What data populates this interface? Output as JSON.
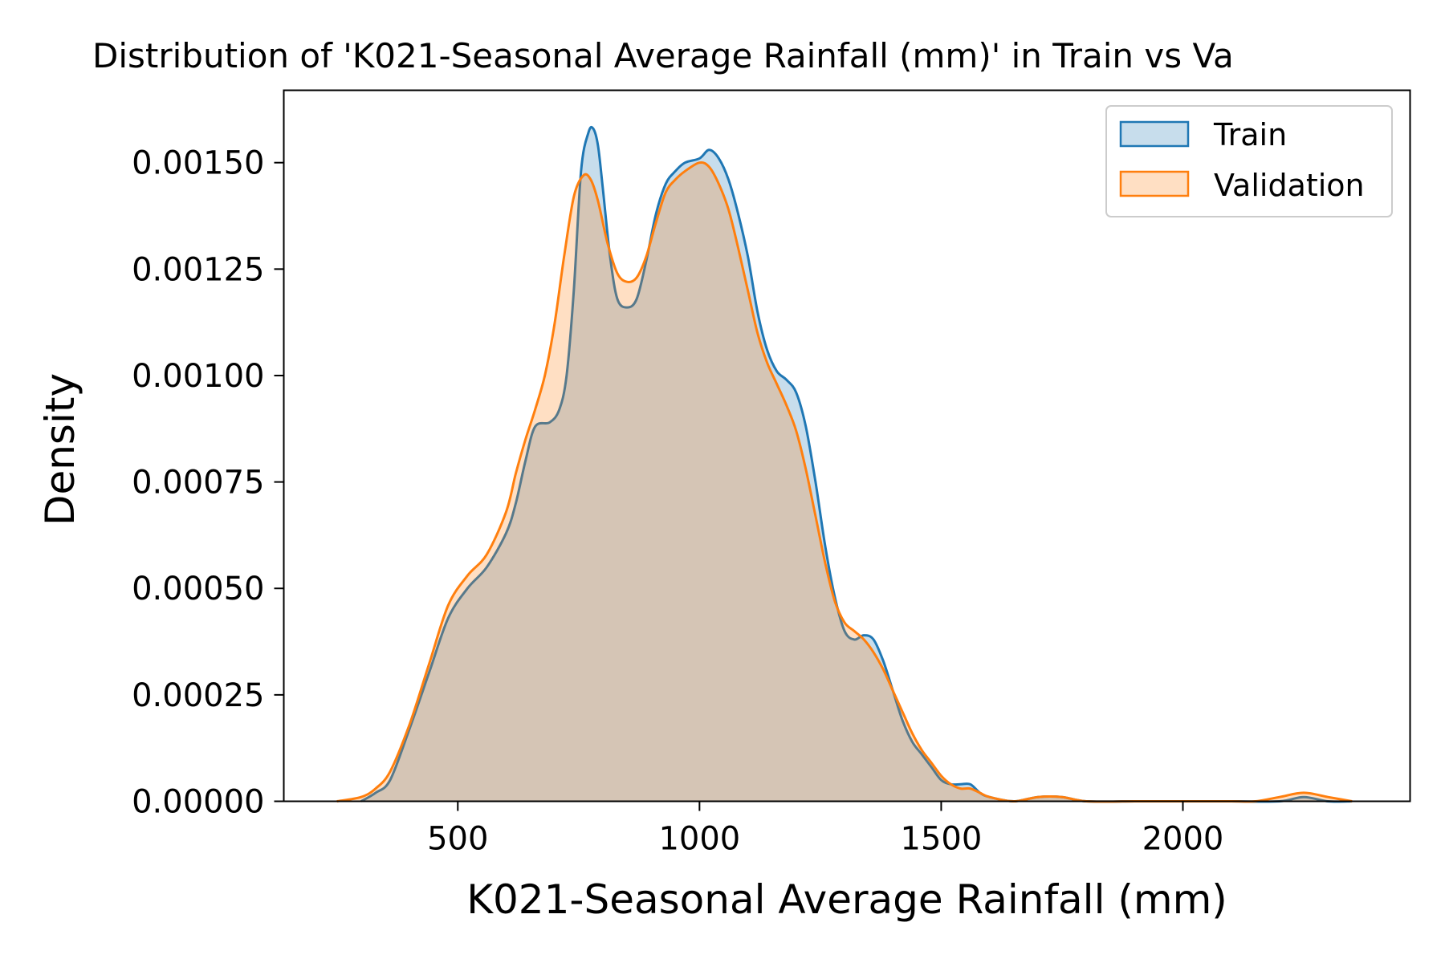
{
  "chart_data": {
    "type": "area",
    "title": "Distribution of 'K021-Seasonal Average Rainfall (mm)' in Train vs Va",
    "xlabel": "K021-Seasonal Average Rainfall (mm)",
    "ylabel": "Density",
    "xlim": [
      140,
      2470
    ],
    "ylim": [
      0,
      0.00167
    ],
    "x_ticks": [
      500,
      1000,
      1500,
      2000
    ],
    "x_tick_labels": [
      "500",
      "1000",
      "1500",
      "2000"
    ],
    "y_ticks": [
      0,
      0.00025,
      0.0005,
      0.00075,
      0.001,
      0.00125,
      0.0015
    ],
    "y_tick_labels": [
      "0.00000",
      "0.00025",
      "0.00050",
      "0.00075",
      "0.00100",
      "0.00125",
      "0.00150"
    ],
    "grid": false,
    "legend_position": "top-right",
    "series": [
      {
        "name": "Train",
        "line_color": "#1f77b4",
        "fill_color": "#1f77b4",
        "points": [
          [
            300,
            0
          ],
          [
            330,
            2e-05
          ],
          [
            360,
            5e-05
          ],
          [
            400,
            0.00017
          ],
          [
            440,
            0.0003
          ],
          [
            480,
            0.00043
          ],
          [
            520,
            0.0005
          ],
          [
            560,
            0.00055
          ],
          [
            600,
            0.00063
          ],
          [
            620,
            0.0007
          ],
          [
            640,
            0.0008
          ],
          [
            660,
            0.00088
          ],
          [
            690,
            0.00089
          ],
          [
            710,
            0.00092
          ],
          [
            725,
            0.001
          ],
          [
            740,
            0.0012
          ],
          [
            755,
            0.00148
          ],
          [
            770,
            0.00157
          ],
          [
            780,
            0.00158
          ],
          [
            790,
            0.00154
          ],
          [
            800,
            0.00144
          ],
          [
            815,
            0.00128
          ],
          [
            830,
            0.00118
          ],
          [
            850,
            0.00116
          ],
          [
            870,
            0.00118
          ],
          [
            890,
            0.00127
          ],
          [
            910,
            0.00138
          ],
          [
            930,
            0.00145
          ],
          [
            950,
            0.00148
          ],
          [
            970,
            0.0015
          ],
          [
            1000,
            0.00151
          ],
          [
            1020,
            0.00153
          ],
          [
            1040,
            0.00151
          ],
          [
            1060,
            0.00146
          ],
          [
            1080,
            0.00138
          ],
          [
            1100,
            0.00128
          ],
          [
            1120,
            0.00115
          ],
          [
            1140,
            0.00106
          ],
          [
            1160,
            0.00101
          ],
          [
            1180,
            0.00099
          ],
          [
            1200,
            0.00096
          ],
          [
            1220,
            0.00088
          ],
          [
            1240,
            0.00075
          ],
          [
            1260,
            0.0006
          ],
          [
            1280,
            0.00048
          ],
          [
            1300,
            0.0004
          ],
          [
            1320,
            0.00038
          ],
          [
            1340,
            0.00039
          ],
          [
            1360,
            0.00038
          ],
          [
            1380,
            0.00033
          ],
          [
            1400,
            0.00026
          ],
          [
            1420,
            0.00019
          ],
          [
            1440,
            0.00014
          ],
          [
            1460,
            0.00011
          ],
          [
            1480,
            8e-05
          ],
          [
            1500,
            5e-05
          ],
          [
            1520,
            4e-05
          ],
          [
            1540,
            4e-05
          ],
          [
            1560,
            4e-05
          ],
          [
            1580,
            2e-05
          ],
          [
            1600,
            1e-05
          ],
          [
            1650,
            0
          ],
          [
            1700,
            1e-05
          ],
          [
            1750,
            1e-05
          ],
          [
            1800,
            0
          ],
          [
            1900,
            0
          ],
          [
            2000,
            0
          ],
          [
            2100,
            0
          ],
          [
            2200,
            0
          ],
          [
            2250,
            1e-05
          ],
          [
            2300,
            0
          ],
          [
            2350,
            0
          ]
        ]
      },
      {
        "name": "Validation",
        "line_color": "#ff7f0e",
        "fill_color": "#ff7f0e",
        "points": [
          [
            250,
            0
          ],
          [
            300,
            1e-05
          ],
          [
            330,
            3e-05
          ],
          [
            360,
            7e-05
          ],
          [
            400,
            0.00018
          ],
          [
            440,
            0.00032
          ],
          [
            480,
            0.00046
          ],
          [
            520,
            0.00053
          ],
          [
            560,
            0.00058
          ],
          [
            600,
            0.00068
          ],
          [
            620,
            0.00077
          ],
          [
            640,
            0.00085
          ],
          [
            660,
            0.00092
          ],
          [
            680,
            0.001
          ],
          [
            700,
            0.00112
          ],
          [
            720,
            0.00128
          ],
          [
            740,
            0.00142
          ],
          [
            760,
            0.00147
          ],
          [
            775,
            0.00146
          ],
          [
            790,
            0.00141
          ],
          [
            810,
            0.00131
          ],
          [
            830,
            0.00124
          ],
          [
            850,
            0.00122
          ],
          [
            870,
            0.00123
          ],
          [
            890,
            0.00128
          ],
          [
            910,
            0.00136
          ],
          [
            930,
            0.00143
          ],
          [
            950,
            0.00146
          ],
          [
            970,
            0.00148
          ],
          [
            1000,
            0.0015
          ],
          [
            1020,
            0.00149
          ],
          [
            1040,
            0.00145
          ],
          [
            1060,
            0.00139
          ],
          [
            1080,
            0.0013
          ],
          [
            1100,
            0.0012
          ],
          [
            1120,
            0.0011
          ],
          [
            1140,
            0.00103
          ],
          [
            1160,
            0.00098
          ],
          [
            1180,
            0.00093
          ],
          [
            1200,
            0.00087
          ],
          [
            1220,
            0.00078
          ],
          [
            1240,
            0.00067
          ],
          [
            1260,
            0.00056
          ],
          [
            1280,
            0.00047
          ],
          [
            1300,
            0.00042
          ],
          [
            1320,
            0.0004
          ],
          [
            1340,
            0.00038
          ],
          [
            1360,
            0.00035
          ],
          [
            1380,
            0.00031
          ],
          [
            1400,
            0.00026
          ],
          [
            1420,
            0.00021
          ],
          [
            1440,
            0.00016
          ],
          [
            1460,
            0.00012
          ],
          [
            1480,
            9e-05
          ],
          [
            1500,
            6e-05
          ],
          [
            1520,
            4e-05
          ],
          [
            1540,
            3e-05
          ],
          [
            1560,
            3e-05
          ],
          [
            1580,
            2e-05
          ],
          [
            1600,
            1e-05
          ],
          [
            1650,
            0
          ],
          [
            1700,
            1e-05
          ],
          [
            1750,
            1e-05
          ],
          [
            1800,
            0
          ],
          [
            1900,
            0
          ],
          [
            2000,
            0
          ],
          [
            2100,
            0
          ],
          [
            2150,
            0
          ],
          [
            2200,
            1e-05
          ],
          [
            2250,
            2e-05
          ],
          [
            2300,
            1e-05
          ],
          [
            2350,
            0
          ]
        ]
      }
    ]
  }
}
